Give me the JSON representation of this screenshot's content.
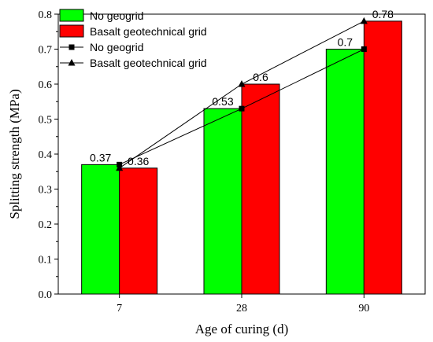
{
  "chart_data": {
    "type": "bar",
    "categories": [
      "7",
      "28",
      "90"
    ],
    "series": [
      {
        "name": "No geogrid",
        "kind": "bar",
        "values": [
          0.37,
          0.53,
          0.7
        ],
        "color": "#00ff00",
        "labels": [
          "0.37",
          "0.53",
          "0.7"
        ]
      },
      {
        "name": "Basalt geotechnical grid",
        "kind": "bar",
        "values": [
          0.36,
          0.6,
          0.78
        ],
        "color": "#ff0000",
        "labels": [
          "0.36",
          "0.6",
          "0.78"
        ]
      },
      {
        "name": "No geogrid",
        "kind": "line",
        "marker": "square",
        "values": [
          0.37,
          0.53,
          0.7
        ],
        "color": "#000000"
      },
      {
        "name": "Basalt geotechnical grid",
        "kind": "line",
        "marker": "triangle",
        "values": [
          0.36,
          0.6,
          0.78
        ],
        "color": "#000000"
      }
    ],
    "xlabel": "Age of curing (d)",
    "ylabel": "Splitting strength (MPa)",
    "ylim": [
      0,
      0.8
    ],
    "yticks": [
      "0.0",
      "0.1",
      "0.2",
      "0.3",
      "0.4",
      "0.5",
      "0.6",
      "0.7",
      "0.8"
    ],
    "grid": false,
    "legend_position": "top-left"
  }
}
